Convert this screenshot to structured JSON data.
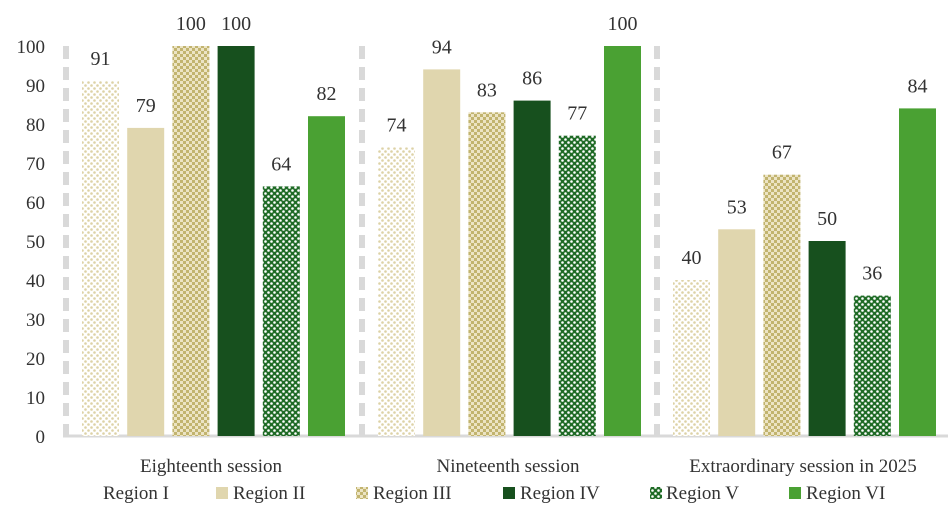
{
  "chart_data": {
    "type": "bar",
    "categories": [
      "Eighteenth session",
      "Nineteenth session",
      "Extraordinary session in 2025"
    ],
    "series": [
      {
        "name": "Region I",
        "values": [
          91,
          74,
          40
        ],
        "color": "#e6dcb4",
        "pattern": "dotted-light"
      },
      {
        "name": "Region II",
        "values": [
          79,
          94,
          53
        ],
        "color": "#e0d6ae",
        "pattern": "solid"
      },
      {
        "name": "Region III",
        "values": [
          100,
          83,
          67
        ],
        "color": "#c9bc7c",
        "pattern": "checker"
      },
      {
        "name": "Region IV",
        "values": [
          100,
          86,
          50
        ],
        "color": "#17501e",
        "pattern": "solid"
      },
      {
        "name": "Region V",
        "values": [
          64,
          77,
          36
        ],
        "color": "#2e7d32",
        "pattern": "dotted-dark"
      },
      {
        "name": "Region VI",
        "values": [
          82,
          100,
          84
        ],
        "color": "#4aa133",
        "pattern": "solid"
      }
    ],
    "yticks": [
      0,
      10,
      20,
      30,
      40,
      50,
      60,
      70,
      80,
      90,
      100
    ],
    "ylim": [
      0,
      100
    ],
    "legend_position": "bottom"
  }
}
